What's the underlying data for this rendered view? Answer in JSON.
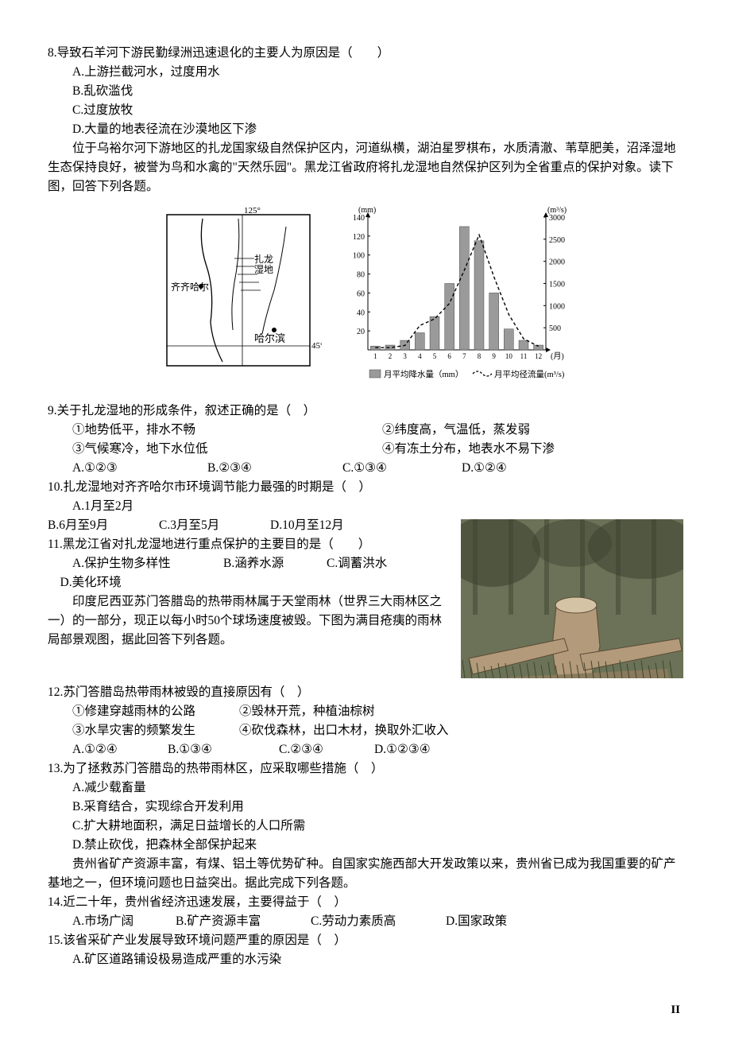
{
  "q8": {
    "stem": "8.导致石羊河下游民勤绿洲迅速退化的主要人为原因是（　　）",
    "optA": "A.上游拦截河水，过度用水",
    "optB": "B.乱砍滥伐",
    "optC": "C.过度放牧",
    "optD": "D.大量的地表径流在沙漠地区下渗"
  },
  "passage9": "位于乌裕尔河下游地区的扎龙国家级自然保护区内，河道纵横，湖泊星罗棋布，水质清澈、苇草肥美，沼泽湿地生态保持良好，被誉为鸟和水禽的\"天然乐园\"。黑龙江省政府将扎龙湿地自然保护区列为全省重点的保护对象。读下图，回答下列各题。",
  "map": {
    "labels": {
      "lon": "125°",
      "lat": "45°",
      "city1": "齐齐哈尔",
      "wetland": "扎龙\n湿地",
      "city2": "哈尔滨"
    },
    "border_color": "#000000",
    "bg": "#ffffff"
  },
  "chart": {
    "y1_label": "(mm)",
    "y2_label": "(m³/s)",
    "x_label": "(月)",
    "y1_max": 140,
    "y1_step": 20,
    "y2_max": 3000,
    "y2_step": 500,
    "months": [
      1,
      2,
      3,
      4,
      5,
      6,
      7,
      8,
      9,
      10,
      11,
      12
    ],
    "precip_mm": [
      4,
      5,
      10,
      18,
      35,
      70,
      130,
      115,
      60,
      22,
      10,
      5
    ],
    "flow": [
      50,
      50,
      100,
      550,
      700,
      1050,
      1800,
      2600,
      1650,
      800,
      250,
      80
    ],
    "bar_color": "#9a9a9a",
    "line_color": "#000000",
    "axis_color": "#000000",
    "bg": "#ffffff",
    "legend_precip": "月平均降水量（mm）",
    "legend_flow": "月平均径流量(m³/s)"
  },
  "q9": {
    "stem": "9.关于扎龙湿地的形成条件，叙述正确的是（　）",
    "s1": "①地势低平，排水不畅",
    "s2": "②纬度高，气温低，蒸发弱",
    "s3": "③气候寒冷，地下水位低",
    "s4": "④有冻土分布，地表水不易下渗",
    "a": "A.①②③",
    "b": "B.②③④",
    "c": "C.①③④",
    "d": "D.①②④"
  },
  "q10": {
    "stem": "10.扎龙湿地对齐齐哈尔市环境调节能力最强的时期是（　）",
    "a": "A.1月至2月",
    "b": "B.6月至9月",
    "c": "C.3月至5月",
    "d": "D.10月至12月"
  },
  "q11": {
    "stem": "11.黑龙江省对扎龙湿地进行重点保护的主要目的是（　　）",
    "a": "A.保护生物多样性",
    "b": "B.涵养水源",
    "c": "C.调蓄洪水",
    "d": "D.美化环境"
  },
  "passage12": "印度尼西亚苏门答腊岛的热带雨林属于天堂雨林（世界三大雨林区之一）的一部分，现正以每小时50个球场速度被毁。下图为满目疮痍的雨林局部景观图，据此回答下列各题。",
  "photo": {
    "caption": "雨林局部景观图",
    "bg": "#6b7257",
    "trunk": "#b39a7a",
    "dark": "#3d4230"
  },
  "q12": {
    "stem": "12.苏门答腊岛热带雨林被毁的直接原因有（　）",
    "s1": "①修建穿越雨林的公路",
    "s2": "②毁林开荒，种植油棕树",
    "s3": "③水旱灾害的频繁发生",
    "s4": "④砍伐森林，出口木材，换取外汇收入",
    "a": "A.①②④",
    "b": "B.①③④",
    "c": "C.②③④",
    "d": "D.①②③④"
  },
  "q13": {
    "stem": "13.为了拯救苏门答腊岛的热带雨林区，应采取哪些措施（　）",
    "a": "A.减少载畜量",
    "b": "B.采育结合，实现综合开发利用",
    "c": "C.扩大耕地面积，满足日益增长的人口所需",
    "d": "D.禁止砍伐，把森林全部保护起来"
  },
  "passage14": "贵州省矿产资源丰富，有煤、铝土等优势矿种。自国家实施西部大开发政策以来，贵州省已成为我国重要的矿产基地之一，但环境问题也日益突出。据此完成下列各题。",
  "q14": {
    "stem": "14.近二十年，贵州省经济迅速发展，主要得益于（　）",
    "a": "A.市场广阔",
    "b": "B.矿产资源丰富",
    "c": "C.劳动力素质高",
    "d": "D.国家政策"
  },
  "q15": {
    "stem": "15.该省采矿产业发展导致环境问题严重的原因是（　）",
    "a": "A.矿区道路铺设极易造成严重的水污染"
  },
  "pageNum": "II"
}
